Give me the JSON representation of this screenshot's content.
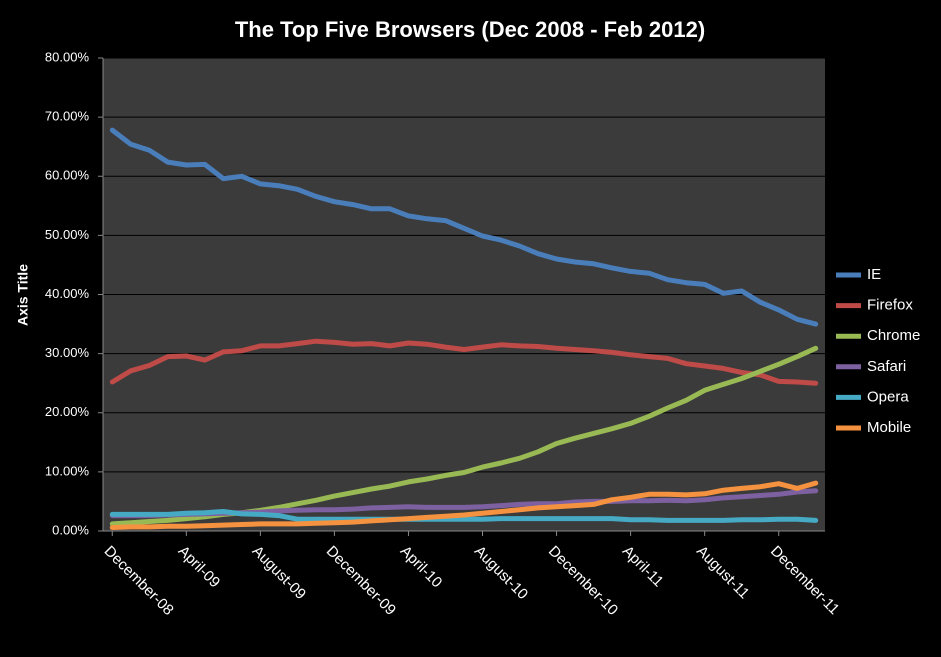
{
  "chart_data": {
    "type": "line",
    "title": "The Top Five Browsers (Dec 2008 - Feb 2012)",
    "y_axis_title": "Axis Title",
    "categories": [
      "December-08",
      null,
      null,
      null,
      "April-09",
      null,
      null,
      null,
      "August-09",
      null,
      null,
      null,
      "December-09",
      null,
      null,
      null,
      "April-10",
      null,
      null,
      null,
      "August-10",
      null,
      null,
      null,
      "December-10",
      null,
      null,
      null,
      "April-11",
      null,
      null,
      null,
      "August-11",
      null,
      null,
      null,
      "December-11",
      null,
      null
    ],
    "series": [
      {
        "name": "IE",
        "color": "#4a7ebb",
        "values": [
          67.8,
          65.4,
          64.4,
          62.4,
          61.9,
          62.0,
          59.6,
          60.0,
          58.7,
          58.4,
          57.8,
          56.6,
          55.7,
          55.2,
          54.5,
          54.5,
          53.3,
          52.8,
          52.5,
          51.2,
          49.9,
          49.2,
          48.2,
          46.9,
          46.0,
          45.5,
          45.2,
          44.5,
          43.9,
          43.6,
          42.5,
          42.0,
          41.7,
          40.2,
          40.6,
          38.7,
          37.4,
          35.8,
          35.0
        ]
      },
      {
        "name": "Firefox",
        "color": "#be4b48",
        "values": [
          25.2,
          27.1,
          28.0,
          29.5,
          29.6,
          28.9,
          30.3,
          30.5,
          31.3,
          31.3,
          31.7,
          32.1,
          31.9,
          31.6,
          31.7,
          31.3,
          31.8,
          31.6,
          31.1,
          30.7,
          31.1,
          31.5,
          31.3,
          31.2,
          30.9,
          30.7,
          30.5,
          30.2,
          29.8,
          29.5,
          29.2,
          28.3,
          27.9,
          27.5,
          26.8,
          26.4,
          25.3,
          25.2,
          25.0
        ]
      },
      {
        "name": "Chrome",
        "color": "#98b954",
        "values": [
          1.2,
          1.4,
          1.6,
          1.8,
          2.1,
          2.4,
          2.8,
          3.1,
          3.5,
          4.0,
          4.6,
          5.2,
          5.9,
          6.5,
          7.1,
          7.6,
          8.3,
          8.8,
          9.4,
          9.9,
          10.8,
          11.5,
          12.3,
          13.4,
          14.8,
          15.7,
          16.5,
          17.3,
          18.2,
          19.4,
          20.8,
          22.1,
          23.8,
          24.8,
          25.8,
          27.0,
          28.2,
          29.5,
          30.9
        ]
      },
      {
        "name": "Safari",
        "color": "#7d60a0",
        "values": [
          2.6,
          2.6,
          2.6,
          2.7,
          2.8,
          2.9,
          3.0,
          3.1,
          3.2,
          3.4,
          3.5,
          3.6,
          3.6,
          3.7,
          3.9,
          4.0,
          4.1,
          4.0,
          4.0,
          4.0,
          4.1,
          4.3,
          4.5,
          4.6,
          4.6,
          4.9,
          5.0,
          5.0,
          5.1,
          5.1,
          5.2,
          5.1,
          5.3,
          5.6,
          5.8,
          6.0,
          6.2,
          6.6,
          6.8
        ]
      },
      {
        "name": "Opera",
        "color": "#46aac5",
        "values": [
          2.8,
          2.8,
          2.8,
          2.8,
          3.0,
          3.1,
          3.3,
          2.9,
          2.8,
          2.6,
          2.0,
          2.0,
          2.0,
          2.0,
          2.0,
          2.0,
          2.0,
          2.0,
          2.0,
          2.0,
          2.0,
          2.1,
          2.1,
          2.1,
          2.1,
          2.1,
          2.1,
          2.1,
          1.9,
          1.9,
          1.8,
          1.8,
          1.8,
          1.8,
          1.9,
          1.9,
          2.0,
          2.0,
          1.8
        ]
      },
      {
        "name": "Mobile",
        "color": "#f59240",
        "values": [
          0.6,
          0.7,
          0.7,
          0.8,
          0.8,
          0.9,
          1.0,
          1.1,
          1.2,
          1.2,
          1.2,
          1.3,
          1.4,
          1.5,
          1.7,
          1.9,
          2.1,
          2.3,
          2.5,
          2.7,
          3.0,
          3.3,
          3.6,
          3.9,
          4.1,
          4.3,
          4.5,
          5.3,
          5.7,
          6.2,
          6.2,
          6.1,
          6.3,
          6.9,
          7.2,
          7.5,
          8.0,
          7.2,
          8.1
        ]
      }
    ],
    "ylim": [
      0,
      80
    ],
    "yticks": [
      {
        "value": 0,
        "label": "0.00%"
      },
      {
        "value": 10,
        "label": "10.00%"
      },
      {
        "value": 20,
        "label": "20.00%"
      },
      {
        "value": 30,
        "label": "30.00%"
      },
      {
        "value": 40,
        "label": "40.00%"
      },
      {
        "value": 50,
        "label": "50.00%"
      },
      {
        "value": 60,
        "label": "60.00%"
      },
      {
        "value": 70,
        "label": "70.00%"
      },
      {
        "value": 80,
        "label": "80.00%"
      }
    ],
    "grid": true,
    "legend": "right"
  }
}
